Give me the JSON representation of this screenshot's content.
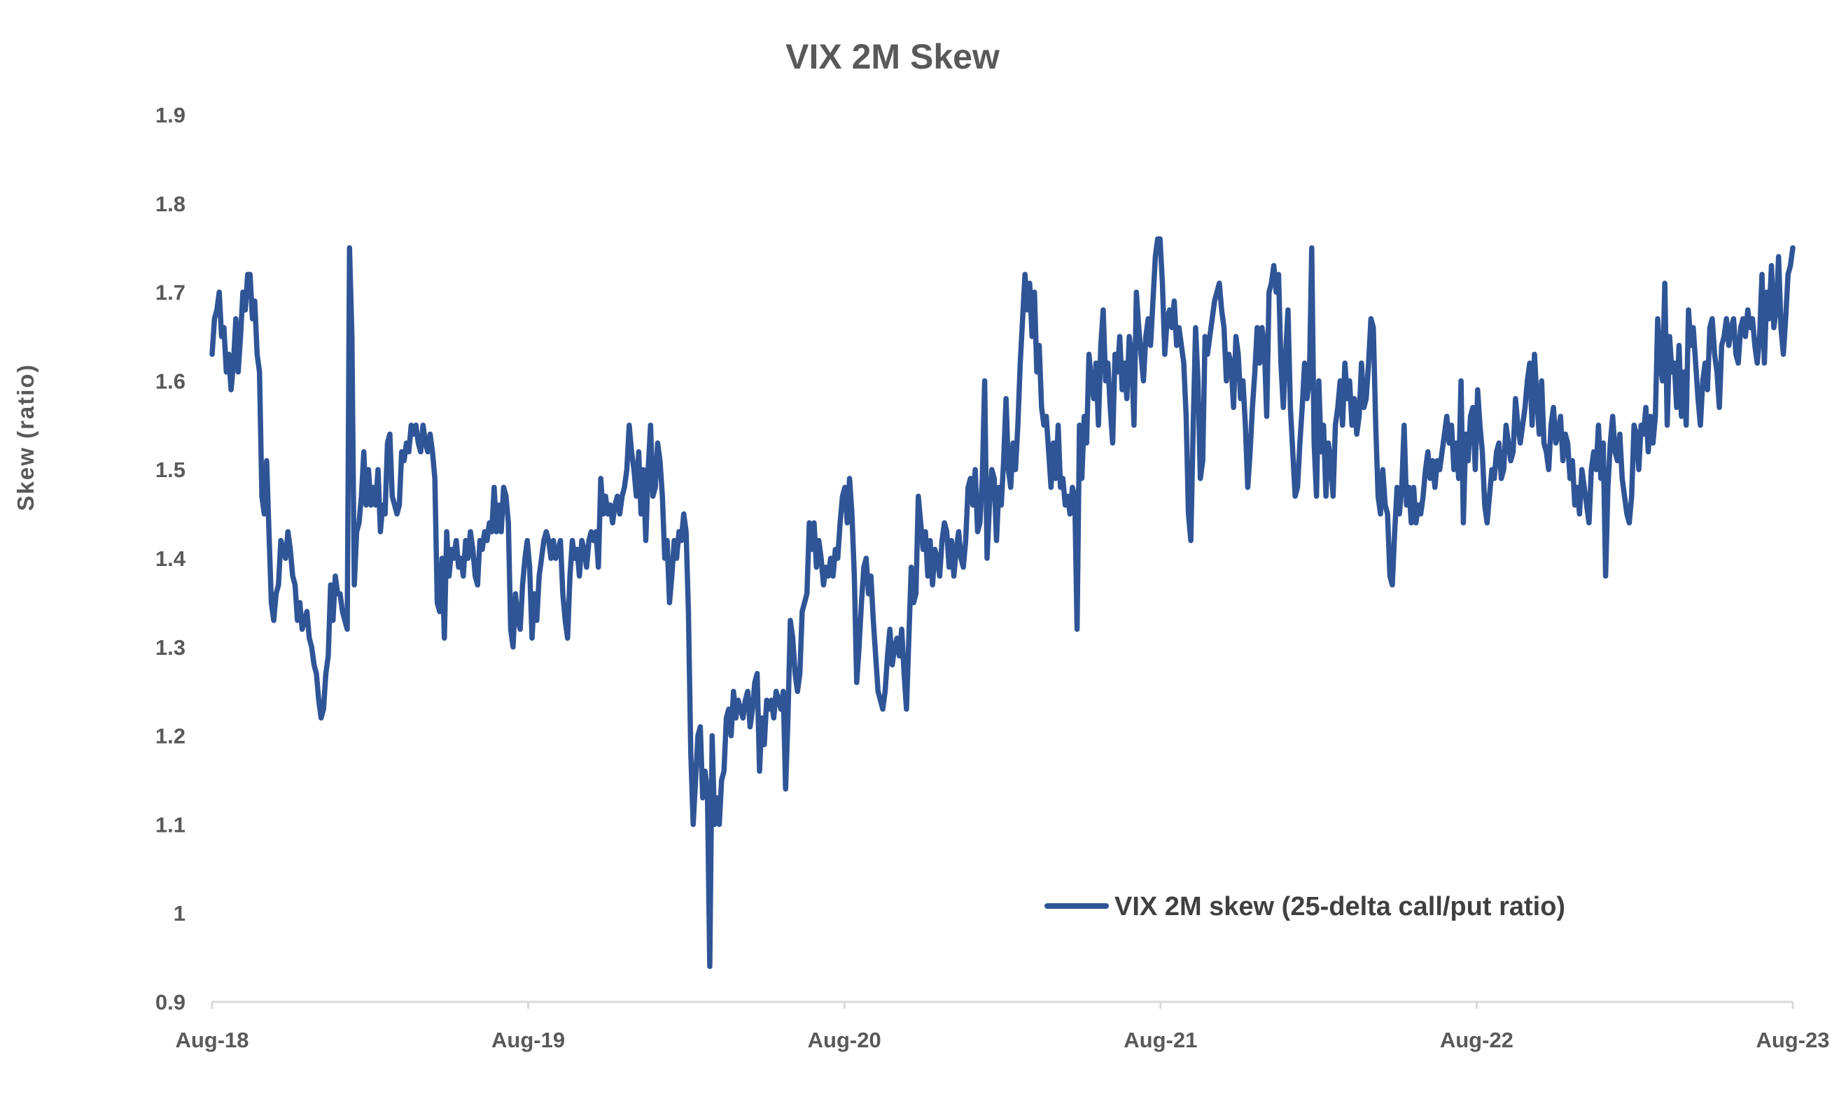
{
  "chart_data": {
    "type": "line",
    "title": "VIX 2M Skew",
    "xlabel": "",
    "ylabel": "Skew (ratio)",
    "ylim": [
      0.9,
      1.9
    ],
    "yticks": [
      "0.9",
      "1",
      "1.1",
      "1.2",
      "1.3",
      "1.4",
      "1.5",
      "1.6",
      "1.7",
      "1.8",
      "1.9"
    ],
    "xlim": [
      "Aug-18",
      "Aug-23"
    ],
    "xticks": [
      "Aug-18",
      "Aug-19",
      "Aug-20",
      "Aug-21",
      "Aug-22",
      "Aug-23"
    ],
    "grid": false,
    "legend_position": "bottom-right",
    "colors": {
      "series": "#2F5597",
      "axis": "#D9D9D9",
      "text": "#595959"
    },
    "series": [
      {
        "name": "VIX 2M skew (25-delta call/put ratio)",
        "sampling": "evenly spaced from Aug-18 to Aug-23",
        "values": [
          1.63,
          1.67,
          1.68,
          1.7,
          1.65,
          1.66,
          1.61,
          1.63,
          1.59,
          1.62,
          1.67,
          1.61,
          1.65,
          1.7,
          1.68,
          1.72,
          1.72,
          1.67,
          1.69,
          1.63,
          1.61,
          1.47,
          1.45,
          1.51,
          1.43,
          1.35,
          1.33,
          1.36,
          1.37,
          1.42,
          1.41,
          1.4,
          1.43,
          1.41,
          1.38,
          1.37,
          1.33,
          1.35,
          1.32,
          1.33,
          1.34,
          1.31,
          1.3,
          1.28,
          1.27,
          1.24,
          1.22,
          1.23,
          1.27,
          1.29,
          1.37,
          1.33,
          1.38,
          1.36,
          1.36,
          1.34,
          1.33,
          1.32,
          1.75,
          1.65,
          1.37,
          1.43,
          1.44,
          1.47,
          1.52,
          1.46,
          1.5,
          1.46,
          1.48,
          1.46,
          1.5,
          1.43,
          1.46,
          1.45,
          1.53,
          1.54,
          1.47,
          1.46,
          1.45,
          1.46,
          1.52,
          1.51,
          1.53,
          1.52,
          1.55,
          1.54,
          1.55,
          1.53,
          1.52,
          1.55,
          1.53,
          1.52,
          1.54,
          1.52,
          1.49,
          1.35,
          1.34,
          1.4,
          1.31,
          1.43,
          1.38,
          1.41,
          1.4,
          1.42,
          1.39,
          1.4,
          1.38,
          1.42,
          1.4,
          1.43,
          1.41,
          1.38,
          1.37,
          1.42,
          1.41,
          1.43,
          1.42,
          1.44,
          1.43,
          1.48,
          1.43,
          1.46,
          1.43,
          1.48,
          1.47,
          1.44,
          1.32,
          1.3,
          1.36,
          1.33,
          1.32,
          1.37,
          1.4,
          1.42,
          1.39,
          1.31,
          1.36,
          1.33,
          1.38,
          1.4,
          1.42,
          1.43,
          1.42,
          1.4,
          1.42,
          1.4,
          1.41,
          1.42,
          1.36,
          1.33,
          1.31,
          1.38,
          1.42,
          1.4,
          1.41,
          1.38,
          1.42,
          1.41,
          1.39,
          1.42,
          1.43,
          1.42,
          1.43,
          1.39,
          1.49,
          1.45,
          1.47,
          1.45,
          1.46,
          1.44,
          1.46,
          1.47,
          1.45,
          1.47,
          1.48,
          1.5,
          1.55,
          1.52,
          1.5,
          1.47,
          1.52,
          1.45,
          1.5,
          1.42,
          1.5,
          1.55,
          1.47,
          1.48,
          1.53,
          1.51,
          1.47,
          1.4,
          1.42,
          1.35,
          1.38,
          1.42,
          1.4,
          1.43,
          1.42,
          1.45,
          1.43,
          1.34,
          1.18,
          1.1,
          1.15,
          1.2,
          1.21,
          1.13,
          1.16,
          1.14,
          0.94,
          1.2,
          1.1,
          1.13,
          1.1,
          1.15,
          1.16,
          1.22,
          1.23,
          1.2,
          1.25,
          1.22,
          1.24,
          1.23,
          1.22,
          1.24,
          1.25,
          1.21,
          1.23,
          1.26,
          1.27,
          1.16,
          1.22,
          1.19,
          1.24,
          1.23,
          1.24,
          1.22,
          1.25,
          1.24,
          1.23,
          1.25,
          1.14,
          1.22,
          1.33,
          1.31,
          1.27,
          1.25,
          1.27,
          1.34,
          1.35,
          1.36,
          1.44,
          1.41,
          1.44,
          1.39,
          1.42,
          1.4,
          1.37,
          1.39,
          1.38,
          1.4,
          1.38,
          1.41,
          1.4,
          1.44,
          1.47,
          1.48,
          1.44,
          1.49,
          1.45,
          1.38,
          1.26,
          1.3,
          1.35,
          1.39,
          1.4,
          1.36,
          1.38,
          1.33,
          1.29,
          1.25,
          1.24,
          1.23,
          1.25,
          1.29,
          1.32,
          1.28,
          1.3,
          1.31,
          1.29,
          1.32,
          1.27,
          1.23,
          1.31,
          1.39,
          1.35,
          1.36,
          1.47,
          1.44,
          1.41,
          1.43,
          1.38,
          1.42,
          1.37,
          1.41,
          1.4,
          1.38,
          1.42,
          1.44,
          1.43,
          1.39,
          1.42,
          1.38,
          1.41,
          1.43,
          1.4,
          1.39,
          1.42,
          1.48,
          1.49,
          1.46,
          1.5,
          1.43,
          1.44,
          1.49,
          1.6,
          1.4,
          1.46,
          1.5,
          1.49,
          1.42,
          1.48,
          1.46,
          1.51,
          1.58,
          1.5,
          1.48,
          1.53,
          1.5,
          1.55,
          1.62,
          1.67,
          1.72,
          1.68,
          1.71,
          1.65,
          1.7,
          1.61,
          1.64,
          1.57,
          1.55,
          1.56,
          1.52,
          1.48,
          1.53,
          1.49,
          1.55,
          1.48,
          1.49,
          1.46,
          1.47,
          1.45,
          1.48,
          1.47,
          1.32,
          1.55,
          1.49,
          1.56,
          1.53,
          1.63,
          1.6,
          1.58,
          1.62,
          1.55,
          1.64,
          1.68,
          1.6,
          1.62,
          1.57,
          1.53,
          1.63,
          1.61,
          1.65,
          1.59,
          1.62,
          1.58,
          1.65,
          1.63,
          1.55,
          1.7,
          1.66,
          1.63,
          1.6,
          1.65,
          1.67,
          1.64,
          1.69,
          1.74,
          1.76,
          1.76,
          1.71,
          1.63,
          1.67,
          1.68,
          1.66,
          1.69,
          1.64,
          1.66,
          1.64,
          1.62,
          1.56,
          1.45,
          1.42,
          1.55,
          1.66,
          1.6,
          1.49,
          1.51,
          1.65,
          1.63,
          1.65,
          1.67,
          1.69,
          1.7,
          1.71,
          1.68,
          1.66,
          1.6,
          1.63,
          1.62,
          1.57,
          1.65,
          1.63,
          1.58,
          1.6,
          1.55,
          1.48,
          1.52,
          1.57,
          1.61,
          1.66,
          1.62,
          1.66,
          1.64,
          1.56,
          1.7,
          1.71,
          1.73,
          1.7,
          1.72,
          1.62,
          1.57,
          1.63,
          1.68,
          1.57,
          1.52,
          1.47,
          1.48,
          1.53,
          1.57,
          1.62,
          1.58,
          1.6,
          1.75,
          1.53,
          1.47,
          1.6,
          1.52,
          1.55,
          1.47,
          1.53,
          1.51,
          1.47,
          1.55,
          1.57,
          1.6,
          1.55,
          1.62,
          1.58,
          1.6,
          1.55,
          1.58,
          1.54,
          1.56,
          1.62,
          1.57,
          1.58,
          1.62,
          1.67,
          1.66,
          1.55,
          1.47,
          1.45,
          1.5,
          1.46,
          1.45,
          1.38,
          1.37,
          1.43,
          1.48,
          1.45,
          1.48,
          1.55,
          1.46,
          1.48,
          1.44,
          1.48,
          1.44,
          1.46,
          1.45,
          1.47,
          1.5,
          1.52,
          1.49,
          1.51,
          1.48,
          1.51,
          1.5,
          1.52,
          1.54,
          1.56,
          1.53,
          1.55,
          1.5,
          1.53,
          1.49,
          1.6,
          1.44,
          1.54,
          1.51,
          1.56,
          1.57,
          1.5,
          1.59,
          1.55,
          1.52,
          1.46,
          1.44,
          1.47,
          1.5,
          1.49,
          1.52,
          1.53,
          1.49,
          1.5,
          1.55,
          1.53,
          1.51,
          1.52,
          1.58,
          1.55,
          1.53,
          1.55,
          1.57,
          1.6,
          1.62,
          1.55,
          1.63,
          1.58,
          1.54,
          1.6,
          1.53,
          1.52,
          1.5,
          1.55,
          1.57,
          1.53,
          1.54,
          1.56,
          1.51,
          1.54,
          1.53,
          1.49,
          1.51,
          1.46,
          1.48,
          1.45,
          1.5,
          1.48,
          1.46,
          1.44,
          1.5,
          1.52,
          1.5,
          1.55,
          1.49,
          1.53,
          1.38,
          1.48,
          1.53,
          1.56,
          1.52,
          1.51,
          1.54,
          1.49,
          1.47,
          1.45,
          1.44,
          1.47,
          1.55,
          1.54,
          1.5,
          1.55,
          1.54,
          1.57,
          1.52,
          1.56,
          1.53,
          1.56,
          1.67,
          1.62,
          1.6,
          1.71,
          1.55,
          1.65,
          1.61,
          1.62,
          1.57,
          1.64,
          1.56,
          1.61,
          1.55,
          1.68,
          1.64,
          1.66,
          1.62,
          1.58,
          1.55,
          1.6,
          1.62,
          1.59,
          1.66,
          1.67,
          1.63,
          1.61,
          1.57,
          1.64,
          1.65,
          1.67,
          1.64,
          1.66,
          1.67,
          1.63,
          1.62,
          1.66,
          1.67,
          1.65,
          1.68,
          1.66,
          1.67,
          1.64,
          1.62,
          1.65,
          1.72,
          1.62,
          1.7,
          1.67,
          1.73,
          1.66,
          1.68,
          1.74,
          1.66,
          1.63,
          1.67,
          1.72,
          1.73,
          1.75
        ]
      }
    ]
  }
}
